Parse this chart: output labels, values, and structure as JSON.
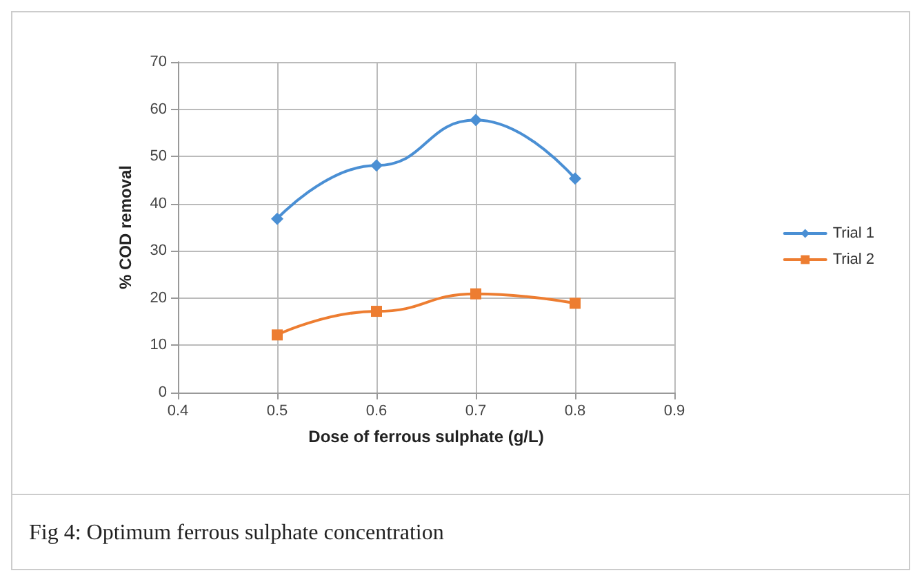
{
  "chart_data": {
    "type": "line",
    "xlabel": "Dose of ferrous sulphate (g/L)",
    "ylabel": "% COD removal",
    "annotations": [
      "Fig 4: Optimum ferrous sulphate concentration"
    ],
    "x": [
      0.5,
      0.6,
      0.7,
      0.8
    ],
    "series": [
      {
        "name": "Trial 1",
        "color": "#4a8fd4",
        "marker": "diamond",
        "values": [
          36.8,
          48.1,
          57.7,
          45.3
        ]
      },
      {
        "name": "Trial 2",
        "color": "#ed7d31",
        "marker": "square",
        "values": [
          12.2,
          17.2,
          20.9,
          18.9
        ]
      }
    ],
    "xlim": [
      0.4,
      0.9
    ],
    "xticks": [
      0.4,
      0.5,
      0.6,
      0.7,
      0.8,
      0.9
    ],
    "ylim": [
      0,
      70
    ],
    "yticks": [
      0,
      10,
      20,
      30,
      40,
      50,
      60,
      70
    ],
    "grid": true,
    "legend": "right"
  }
}
